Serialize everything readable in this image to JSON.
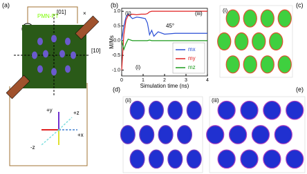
{
  "panel_a": {
    "label": "(a)",
    "material": "PMN-PT",
    "dir_01": "[01]",
    "dir_10": "[10]",
    "cross": "×",
    "axis_py": "+y",
    "axis_pz": "+z",
    "axis_px": "+x",
    "axis_mz": "-z"
  },
  "chart_data": {
    "type": "line",
    "label": "(b)",
    "xlabel": "Simulation time (ns)",
    "ylabel": "M/Ms",
    "annotations": [
      "(i)",
      "(ii)",
      "(iii)",
      "45°"
    ],
    "x": [
      0,
      0.1,
      0.2,
      0.3,
      0.5,
      0.7,
      0.9,
      1.1,
      1.2,
      1.3,
      1.4,
      1.5,
      1.7,
      2,
      2.5,
      3,
      4
    ],
    "series": [
      {
        "name": "mx",
        "color": "#2a4fd6",
        "values": [
          0,
          0.5,
          0.8,
          0.9,
          0.75,
          0.8,
          0.78,
          0.75,
          0.6,
          0.2,
          0.35,
          0.15,
          0.3,
          0.22,
          0.25,
          0.25,
          0.25
        ]
      },
      {
        "name": "my",
        "color": "#e02020",
        "values": [
          -1,
          0.2,
          0.7,
          0.85,
          0.9,
          0.88,
          0.9,
          0.9,
          0.92,
          0.98,
          1.0,
          1.0,
          1.0,
          1.0,
          1.0,
          1.0,
          1.0
        ]
      },
      {
        "name": "mz",
        "color": "#1a9a1a",
        "values": [
          0,
          -0.3,
          -0.1,
          0.05,
          0,
          0,
          0,
          0,
          0,
          0.02,
          0,
          0,
          0,
          0,
          0,
          0,
          0
        ]
      }
    ],
    "xlim": [
      0,
      4
    ],
    "xticks": [
      0,
      1,
      2,
      3,
      4
    ],
    "ylim": [
      -1.2,
      1.1
    ],
    "yticks": [
      {
        "value": -1,
        "label": "-1.0"
      },
      {
        "value": -0.5,
        "label": "-0.5"
      },
      {
        "value": 0,
        "label": "0.0"
      },
      {
        "value": 0.5,
        "label": "0.5"
      },
      {
        "value": 1,
        "label": "1.0"
      }
    ]
  },
  "panel_c": {
    "label": "(c)",
    "state": "(i)"
  },
  "panel_d": {
    "label": "(d)",
    "state": "(ii)"
  },
  "panel_e": {
    "label": "(e)",
    "state": "(iii)"
  }
}
